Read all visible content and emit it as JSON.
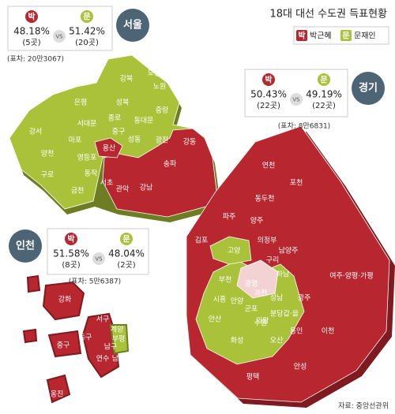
{
  "title": "18대 대선 수도권 득표현황",
  "legend": [
    {
      "badge": "박",
      "name": "박근혜"
    },
    {
      "badge": "문",
      "name": "문재인"
    }
  ],
  "regions": [
    {
      "name": "서울",
      "park": {
        "badge": "박",
        "pct": "48.18%",
        "seats": "(5곳)"
      },
      "vs": "VS",
      "moon": {
        "badge": "문",
        "pct": "51.42%",
        "seats": "(20곳)"
      },
      "margin": "(표차: 20만3067)",
      "districts": [
        "도봉",
        "노원",
        "강북",
        "은평",
        "성북",
        "중랑",
        "종로",
        "동대문",
        "서대문",
        "중구",
        "마포",
        "성동",
        "광진",
        "강서",
        "용산",
        "강동",
        "양천",
        "영등포",
        "구로",
        "동작",
        "송파",
        "금천",
        "관악",
        "서초",
        "강남"
      ]
    },
    {
      "name": "경기",
      "park": {
        "badge": "박",
        "pct": "50.43%",
        "seats": "(22곳)"
      },
      "vs": "VS",
      "moon": {
        "badge": "문",
        "pct": "49.19%",
        "seats": "(22곳)"
      },
      "margin": "(표차: 8만6831)",
      "districts": [
        "연천",
        "포천",
        "동두천",
        "파주",
        "양주",
        "의정부",
        "김포",
        "고양",
        "구리",
        "남양주",
        "하남",
        "여주·양평·가평",
        "부천",
        "광명",
        "시흥",
        "안산",
        "군포",
        "안양",
        "과천",
        "성남",
        "분당갑·을",
        "의왕",
        "수원",
        "광주",
        "화성",
        "오산",
        "용인",
        "이천",
        "평택",
        "안성"
      ]
    },
    {
      "name": "인천",
      "park": {
        "badge": "박",
        "pct": "51.58%",
        "seats": "(8곳)"
      },
      "vs": "VS",
      "moon": {
        "badge": "문",
        "pct": "48.04%",
        "seats": "(2곳)"
      },
      "margin": "(표차: 5만6387)",
      "districts": [
        "강화",
        "서구",
        "계양",
        "부평",
        "동구",
        "중구",
        "남구",
        "연수",
        "남동",
        "옹진"
      ]
    }
  ],
  "source": "자료: 중앙선관위"
}
